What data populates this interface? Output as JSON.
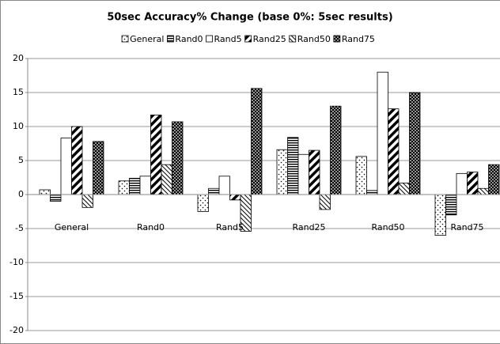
{
  "chart_data": {
    "type": "bar",
    "title": "50sec Accuracy% Change (base 0%: 5sec results)",
    "categories": [
      "General",
      "Rand0",
      "Rand5",
      "Rand25",
      "Rand50",
      "Rand75"
    ],
    "series": [
      {
        "name": "General",
        "color": "#000000",
        "pattern": "sparse-dots",
        "values": [
          0.7,
          2.0,
          -2.5,
          6.6,
          5.6,
          -6.0
        ]
      },
      {
        "name": "Rand0",
        "color": "#000000",
        "pattern": "horizontal",
        "values": [
          -1.0,
          2.4,
          0.9,
          8.4,
          0.6,
          -3.0
        ]
      },
      {
        "name": "Rand5",
        "color": "#000000",
        "pattern": "none",
        "values": [
          8.3,
          2.7,
          2.7,
          5.9,
          18.0,
          3.1
        ]
      },
      {
        "name": "Rand25",
        "color": "#000000",
        "pattern": "thick-diagonal",
        "values": [
          10.0,
          11.7,
          -0.8,
          6.5,
          12.6,
          3.3
        ]
      },
      {
        "name": "Rand50",
        "color": "#000000",
        "pattern": "thin-backdiagonal",
        "values": [
          -1.9,
          4.4,
          -5.4,
          -2.2,
          1.7,
          0.9
        ]
      },
      {
        "name": "Rand75",
        "color": "#000000",
        "pattern": "dense-dots",
        "values": [
          7.8,
          10.7,
          15.6,
          13.0,
          15.0,
          4.4
        ]
      }
    ],
    "ylim": [
      -20,
      20
    ],
    "yticks": [
      -20,
      -15,
      -10,
      -5,
      0,
      5,
      10,
      15,
      20
    ],
    "grid": true,
    "legend": "top"
  }
}
